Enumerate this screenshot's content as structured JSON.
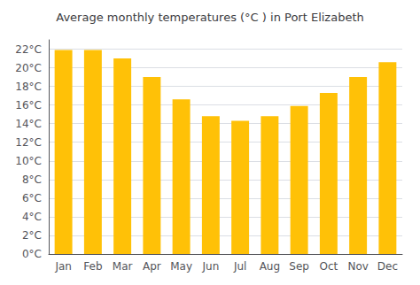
{
  "chart_data": {
    "type": "bar",
    "title": "Average monthly temperatures (°C ) in Port Elizabeth",
    "categories": [
      "Jan",
      "Feb",
      "Mar",
      "Apr",
      "May",
      "Jun",
      "Jul",
      "Aug",
      "Sep",
      "Oct",
      "Nov",
      "Dec"
    ],
    "values": [
      21.9,
      21.9,
      21.0,
      19.0,
      16.6,
      14.8,
      14.3,
      14.8,
      15.9,
      17.3,
      19.0,
      20.6
    ],
    "color": "#FFC107",
    "ylim": [
      0,
      23
    ],
    "yticks": [
      {
        "value": 0,
        "label": "0°C"
      },
      {
        "value": 2,
        "label": "2°C"
      },
      {
        "value": 4,
        "label": "4°C"
      },
      {
        "value": 6,
        "label": "6°C"
      },
      {
        "value": 8,
        "label": "8°C"
      },
      {
        "value": 10,
        "label": "10°C"
      },
      {
        "value": 12,
        "label": "12°C"
      },
      {
        "value": 14,
        "label": "14°C"
      },
      {
        "value": 16,
        "label": "16°C"
      },
      {
        "value": 18,
        "label": "18°C"
      },
      {
        "value": 20,
        "label": "20°C"
      },
      {
        "value": 22,
        "label": "22°C"
      }
    ],
    "grid": true
  }
}
